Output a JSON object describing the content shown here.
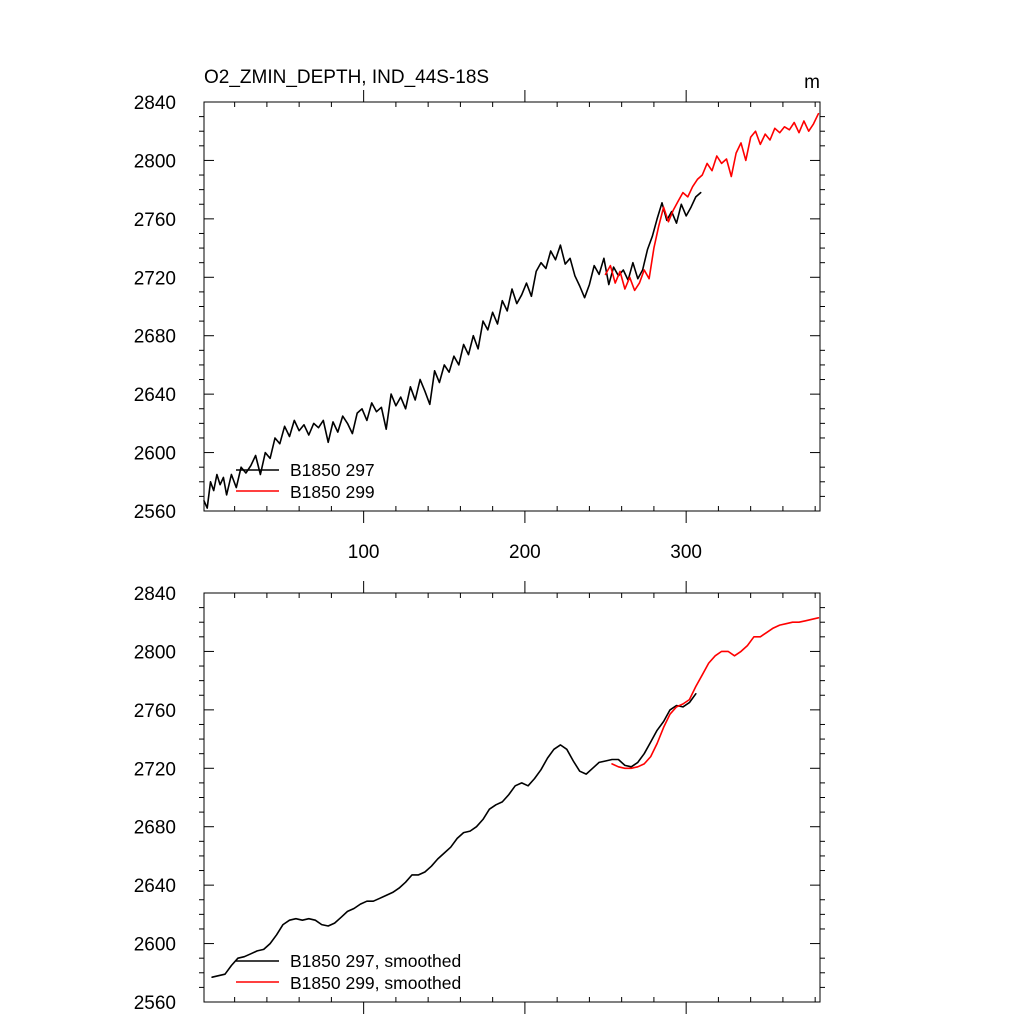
{
  "chart_data": [
    {
      "type": "line",
      "title": "O2_ZMIN_DEPTH, IND_44S-18S",
      "units": "m",
      "xlabel": "",
      "ylabel": "",
      "xlim": [
        1,
        383
      ],
      "ylim": [
        2560,
        2840
      ],
      "x_ticks": [
        100,
        200,
        300
      ],
      "x_tick_labels": [
        "100",
        "200",
        "300"
      ],
      "y_ticks": [
        2560,
        2600,
        2640,
        2680,
        2720,
        2760,
        2800,
        2840
      ],
      "y_tick_labels": [
        "2560",
        "2600",
        "2640",
        "2680",
        "2720",
        "2760",
        "2800",
        "2840"
      ],
      "legend_position": "bottom-left",
      "series": [
        {
          "name": "B1850 297",
          "color": "#000000",
          "x": [
            1,
            3,
            5,
            7,
            9,
            11,
            13,
            15,
            18,
            21,
            24,
            27,
            30,
            33,
            36,
            39,
            42,
            45,
            48,
            51,
            54,
            57,
            60,
            63,
            66,
            69,
            72,
            75,
            78,
            81,
            84,
            87,
            90,
            93,
            96,
            99,
            102,
            105,
            108,
            111,
            114,
            117,
            120,
            123,
            126,
            129,
            132,
            135,
            138,
            141,
            144,
            147,
            150,
            153,
            156,
            159,
            162,
            165,
            168,
            171,
            174,
            177,
            180,
            183,
            186,
            189,
            192,
            195,
            198,
            201,
            204,
            207,
            210,
            213,
            216,
            219,
            222,
            225,
            228,
            231,
            234,
            237,
            240,
            243,
            246,
            249,
            252,
            255,
            258,
            261,
            264,
            267,
            270,
            273,
            276,
            279,
            282,
            285,
            288,
            291,
            294,
            297,
            300,
            303,
            306,
            309
          ],
          "values": [
            2567,
            2562,
            2580,
            2574,
            2585,
            2578,
            2583,
            2571,
            2585,
            2576,
            2590,
            2586,
            2591,
            2598,
            2585,
            2600,
            2596,
            2610,
            2606,
            2618,
            2611,
            2622,
            2615,
            2619,
            2612,
            2620,
            2617,
            2622,
            2607,
            2621,
            2614,
            2625,
            2620,
            2613,
            2627,
            2630,
            2622,
            2634,
            2628,
            2631,
            2616,
            2640,
            2632,
            2638,
            2630,
            2645,
            2636,
            2650,
            2642,
            2633,
            2656,
            2648,
            2660,
            2655,
            2666,
            2660,
            2674,
            2667,
            2680,
            2671,
            2690,
            2684,
            2696,
            2688,
            2704,
            2697,
            2712,
            2702,
            2708,
            2716,
            2707,
            2724,
            2730,
            2726,
            2738,
            2732,
            2742,
            2729,
            2733,
            2721,
            2714,
            2706,
            2715,
            2728,
            2722,
            2733,
            2715,
            2727,
            2721,
            2725,
            2718,
            2730,
            2719,
            2725,
            2739,
            2748,
            2760,
            2771,
            2759,
            2765,
            2757,
            2770,
            2762,
            2768,
            2775,
            2778
          ]
        },
        {
          "name": "B1850 299",
          "color": "#ff0000",
          "x": [
            250,
            253,
            256,
            259,
            262,
            265,
            268,
            271,
            274,
            277,
            280,
            283,
            286,
            289,
            292,
            295,
            298,
            301,
            304,
            307,
            310,
            313,
            316,
            319,
            322,
            325,
            328,
            331,
            334,
            337,
            340,
            343,
            346,
            349,
            352,
            355,
            358,
            361,
            364,
            367,
            370,
            373,
            376,
            379,
            382
          ],
          "values": [
            2722,
            2728,
            2716,
            2724,
            2712,
            2720,
            2711,
            2716,
            2725,
            2719,
            2740,
            2755,
            2768,
            2758,
            2766,
            2772,
            2778,
            2775,
            2782,
            2787,
            2790,
            2798,
            2793,
            2803,
            2798,
            2801,
            2789,
            2805,
            2812,
            2800,
            2816,
            2820,
            2811,
            2818,
            2814,
            2822,
            2819,
            2823,
            2821,
            2826,
            2819,
            2827,
            2820,
            2825,
            2832
          ]
        }
      ],
      "legend": [
        "B1850 297",
        "B1850 299"
      ]
    },
    {
      "type": "line",
      "title": "",
      "xlabel": "",
      "ylabel": "",
      "xlim": [
        1,
        383
      ],
      "ylim": [
        2560,
        2840
      ],
      "x_ticks": [
        100,
        200,
        300
      ],
      "x_tick_labels": [],
      "y_ticks": [
        2560,
        2600,
        2640,
        2680,
        2720,
        2760,
        2800,
        2840
      ],
      "y_tick_labels": [
        "2560",
        "2600",
        "2640",
        "2680",
        "2720",
        "2760",
        "2800",
        "2840"
      ],
      "legend_position": "bottom-left",
      "series": [
        {
          "name": "B1850 297, smoothed",
          "color": "#000000",
          "x": [
            6,
            10,
            14,
            18,
            22,
            26,
            30,
            34,
            38,
            42,
            46,
            50,
            54,
            58,
            62,
            66,
            70,
            74,
            78,
            82,
            86,
            90,
            94,
            98,
            102,
            106,
            110,
            114,
            118,
            122,
            126,
            130,
            134,
            138,
            142,
            146,
            150,
            154,
            158,
            162,
            166,
            170,
            174,
            178,
            182,
            186,
            190,
            194,
            198,
            202,
            206,
            210,
            214,
            218,
            222,
            226,
            230,
            234,
            238,
            242,
            246,
            250,
            254,
            258,
            262,
            266,
            270,
            274,
            278,
            282,
            286,
            290,
            294,
            298,
            302,
            306
          ],
          "values": [
            2577,
            2578,
            2579,
            2585,
            2590,
            2591,
            2593,
            2595,
            2596,
            2600,
            2606,
            2613,
            2616,
            2617,
            2616,
            2617,
            2616,
            2613,
            2612,
            2614,
            2618,
            2622,
            2624,
            2627,
            2629,
            2629,
            2631,
            2633,
            2635,
            2638,
            2642,
            2647,
            2647,
            2649,
            2653,
            2658,
            2662,
            2666,
            2672,
            2676,
            2677,
            2680,
            2685,
            2692,
            2695,
            2697,
            2702,
            2708,
            2710,
            2708,
            2713,
            2719,
            2727,
            2733,
            2736,
            2733,
            2725,
            2718,
            2716,
            2720,
            2724,
            2725,
            2726,
            2726,
            2722,
            2721,
            2724,
            2730,
            2738,
            2746,
            2752,
            2760,
            2763,
            2762,
            2765,
            2771
          ]
        },
        {
          "name": "B1850 299, smoothed",
          "color": "#ff0000",
          "x": [
            254,
            258,
            262,
            266,
            270,
            274,
            278,
            282,
            286,
            290,
            294,
            298,
            302,
            306,
            310,
            314,
            318,
            322,
            326,
            330,
            334,
            338,
            342,
            346,
            350,
            354,
            358,
            362,
            366,
            370,
            374,
            378,
            382
          ],
          "values": [
            2723,
            2721,
            2720,
            2720,
            2721,
            2723,
            2728,
            2737,
            2748,
            2757,
            2762,
            2764,
            2767,
            2776,
            2784,
            2792,
            2797,
            2800,
            2800,
            2797,
            2800,
            2804,
            2810,
            2810,
            2813,
            2816,
            2818,
            2819,
            2820,
            2820,
            2821,
            2822,
            2823
          ]
        }
      ],
      "legend": [
        "B1850 297, smoothed",
        "B1850 299, smoothed"
      ]
    }
  ]
}
